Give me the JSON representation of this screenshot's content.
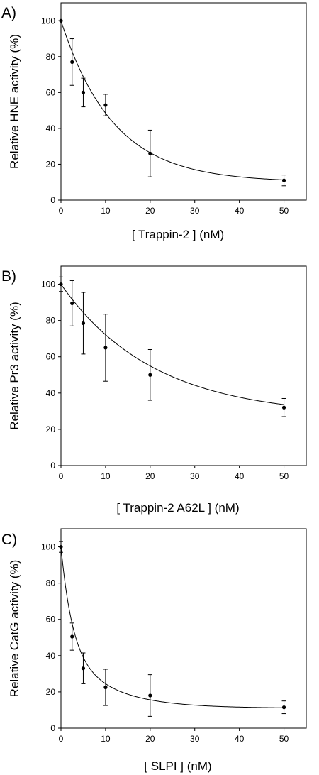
{
  "chart_data": [
    {
      "type": "scatter",
      "panel_label": "A)",
      "xlabel": "[ Trappin-2 ] (nM)",
      "ylabel": "Relative HNE activity  (%)",
      "xlim": [
        0,
        55
      ],
      "ylim": [
        0,
        110
      ],
      "xticks": [
        0,
        10,
        20,
        30,
        40,
        50
      ],
      "yticks": [
        0,
        20,
        40,
        60,
        80,
        100
      ],
      "grid": false,
      "points": [
        {
          "x": 0,
          "y": 100,
          "err": 0
        },
        {
          "x": 2.5,
          "y": 77,
          "err": 13
        },
        {
          "x": 5,
          "y": 60,
          "err": 8
        },
        {
          "x": 10,
          "y": 53,
          "err": 6
        },
        {
          "x": 20,
          "y": 26,
          "err": 13
        },
        {
          "x": 50,
          "y": 11,
          "err": 3
        }
      ],
      "fit": {
        "model": "exponential_decay",
        "plateau": 10,
        "span": 90,
        "k": 0.085
      }
    },
    {
      "type": "scatter",
      "panel_label": "B)",
      "xlabel": "[ Trappin-2 A62L ] (nM)",
      "ylabel": "Relative Pr3 activity  (%)",
      "xlim": [
        0,
        55
      ],
      "ylim": [
        0,
        110
      ],
      "xticks": [
        0,
        10,
        20,
        30,
        40,
        50
      ],
      "yticks": [
        0,
        20,
        40,
        60,
        80,
        100
      ],
      "grid": false,
      "points": [
        {
          "x": 0,
          "y": 100,
          "err": 4
        },
        {
          "x": 2.5,
          "y": 89.5,
          "err": 12.5
        },
        {
          "x": 5,
          "y": 78.5,
          "err": 17
        },
        {
          "x": 10,
          "y": 65,
          "err": 18.5
        },
        {
          "x": 20,
          "y": 50,
          "err": 14
        },
        {
          "x": 50,
          "y": 32,
          "err": 5
        }
      ],
      "fit": {
        "model": "exponential_decay",
        "plateau": 27,
        "span": 73,
        "k": 0.048
      }
    },
    {
      "type": "scatter",
      "panel_label": "C)",
      "xlabel": "[ SLPI ] (nM)",
      "ylabel": "Relative CatG activity (%)",
      "xlim": [
        0,
        55
      ],
      "ylim": [
        0,
        110
      ],
      "xticks": [
        0,
        10,
        20,
        30,
        40,
        50
      ],
      "yticks": [
        0,
        20,
        40,
        60,
        80,
        100
      ],
      "grid": false,
      "points": [
        {
          "x": 0,
          "y": 100,
          "err": 3
        },
        {
          "x": 2.5,
          "y": 50.5,
          "err": 7.5
        },
        {
          "x": 5,
          "y": 33,
          "err": 8.5
        },
        {
          "x": 10,
          "y": 22.5,
          "err": 10
        },
        {
          "x": 20,
          "y": 18,
          "err": 11.5
        },
        {
          "x": 50,
          "y": 11.5,
          "err": 3.5
        }
      ],
      "fit": {
        "model": "biexponential_decay",
        "plateau": 11,
        "a1": 55,
        "k1": 0.4,
        "a2": 34,
        "k2": 0.1
      }
    }
  ]
}
